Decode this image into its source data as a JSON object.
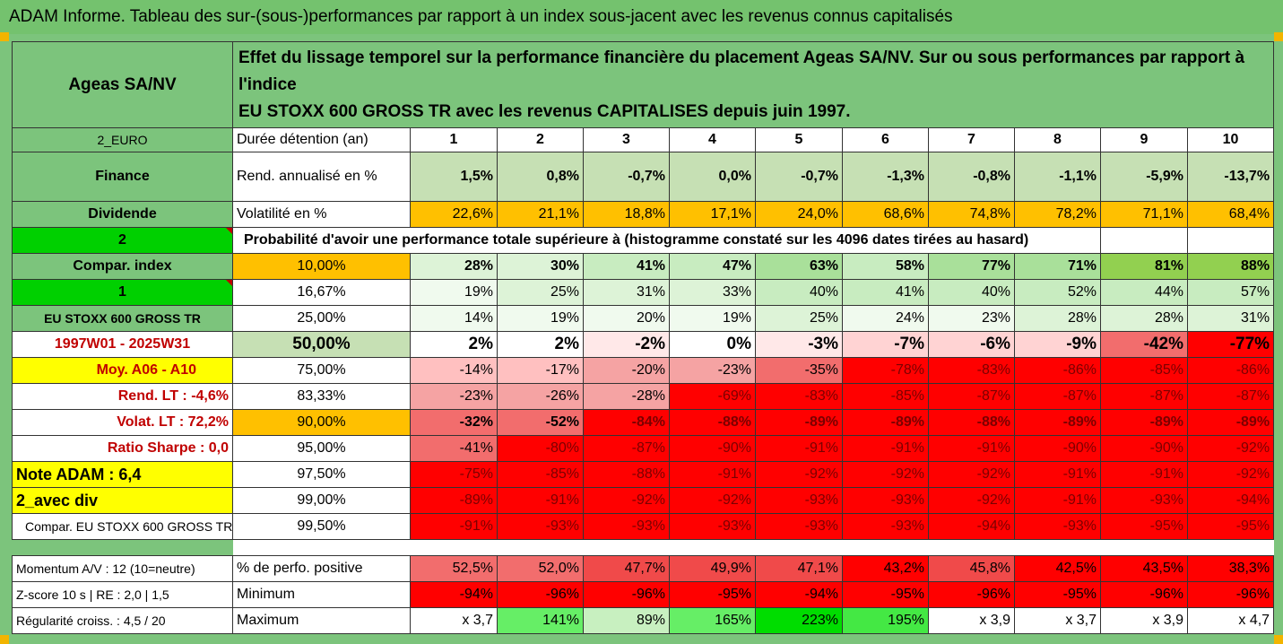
{
  "title": "ADAM Informe. Tableau des sur-(sous-)performances par rapport à un index sous-jacent avec les revenus connus capitalisés",
  "header": {
    "asset": "Ageas SA/NV",
    "description_line1": "Effet du lissage temporel sur la performance financière du placement Ageas SA/NV. Sur ou sous performances par rapport à l'indice",
    "description_line2": "EU STOXX 600 GROSS TR avec les revenus CAPITALISES depuis juin 1997."
  },
  "side_labels": {
    "currency": "2_EURO",
    "sector": "Finance",
    "dividend": "Dividende",
    "number_2": "2",
    "compar_index": "Compar. index",
    "number_1": "1",
    "index_name": "EU STOXX 600 GROSS TR",
    "period": "1997W01 - 2025W31",
    "moy": "Moy. A06 - A10",
    "rend_lt": "Rend. LT :   -4,6%",
    "volat_lt": "Volat. LT :   72,2%",
    "sharpe": "Ratio Sharpe :   0,0",
    "note": "Note ADAM : 6,4",
    "avec_div": "2_avec div",
    "compar_full": "Compar. EU STOXX 600 GROSS TR",
    "momentum": "Momentum A/V : 12 (10=neutre)",
    "zscore": "Z-score 10 s  |  RE : 2,0  |  1,5",
    "regularite": "Régularité croiss. : 4,5 / 20"
  },
  "row_labels": {
    "duree": "Durée détention (an)",
    "rend": "Rend. annualisé en %",
    "volat": "Volatilité en %",
    "proba": "Probabilité d'avoir une performance totale supérieure à (histogramme constaté sur les 4096 dates tirées au hasard)",
    "positive": "% de perfo. positive",
    "minimum": "Minimum",
    "maximum": "Maximum"
  },
  "years": [
    "1",
    "2",
    "3",
    "4",
    "5",
    "6",
    "7",
    "8",
    "9",
    "10"
  ],
  "rend_values": [
    "1,5%",
    "0,8%",
    "-0,7%",
    "0,0%",
    "-0,7%",
    "-1,3%",
    "-0,8%",
    "-1,1%",
    "-5,9%",
    "-13,7%"
  ],
  "volat_values": [
    "22,6%",
    "21,1%",
    "18,8%",
    "17,1%",
    "24,0%",
    "68,6%",
    "74,8%",
    "78,2%",
    "71,1%",
    "68,4%"
  ],
  "quantile_rows": [
    {
      "pct": "10,00%",
      "values": [
        "28%",
        "30%",
        "41%",
        "47%",
        "63%",
        "58%",
        "77%",
        "71%",
        "81%",
        "88%"
      ]
    },
    {
      "pct": "16,67%",
      "values": [
        "19%",
        "25%",
        "31%",
        "33%",
        "40%",
        "41%",
        "40%",
        "52%",
        "44%",
        "57%"
      ]
    },
    {
      "pct": "25,00%",
      "values": [
        "14%",
        "19%",
        "20%",
        "19%",
        "25%",
        "24%",
        "23%",
        "28%",
        "28%",
        "31%"
      ]
    },
    {
      "pct": "50,00%",
      "values": [
        "2%",
        "2%",
        "-2%",
        "0%",
        "-3%",
        "-7%",
        "-6%",
        "-9%",
        "-42%",
        "-77%"
      ]
    },
    {
      "pct": "75,00%",
      "values": [
        "-14%",
        "-17%",
        "-20%",
        "-23%",
        "-35%",
        "-78%",
        "-83%",
        "-86%",
        "-85%",
        "-86%"
      ]
    },
    {
      "pct": "83,33%",
      "values": [
        "-23%",
        "-26%",
        "-28%",
        "-69%",
        "-83%",
        "-85%",
        "-87%",
        "-87%",
        "-87%",
        "-87%"
      ]
    },
    {
      "pct": "90,00%",
      "values": [
        "-32%",
        "-52%",
        "-84%",
        "-88%",
        "-89%",
        "-89%",
        "-88%",
        "-89%",
        "-89%",
        "-89%"
      ]
    },
    {
      "pct": "95,00%",
      "values": [
        "-41%",
        "-80%",
        "-87%",
        "-90%",
        "-91%",
        "-91%",
        "-91%",
        "-90%",
        "-90%",
        "-92%"
      ]
    },
    {
      "pct": "97,50%",
      "values": [
        "-75%",
        "-85%",
        "-88%",
        "-91%",
        "-92%",
        "-92%",
        "-92%",
        "-91%",
        "-91%",
        "-92%"
      ]
    },
    {
      "pct": "99,00%",
      "values": [
        "-89%",
        "-91%",
        "-92%",
        "-92%",
        "-93%",
        "-93%",
        "-92%",
        "-91%",
        "-93%",
        "-94%"
      ]
    },
    {
      "pct": "99,50%",
      "values": [
        "-91%",
        "-93%",
        "-93%",
        "-93%",
        "-93%",
        "-93%",
        "-94%",
        "-93%",
        "-95%",
        "-95%"
      ]
    }
  ],
  "positive_values": [
    "52,5%",
    "52,0%",
    "47,7%",
    "49,9%",
    "47,1%",
    "43,2%",
    "45,8%",
    "42,5%",
    "43,5%",
    "38,3%"
  ],
  "minimum_values": [
    "-94%",
    "-96%",
    "-96%",
    "-95%",
    "-94%",
    "-95%",
    "-96%",
    "-95%",
    "-96%",
    "-96%"
  ],
  "maximum_values": [
    "x 3,7",
    "141%",
    "89%",
    "165%",
    "223%",
    "195%",
    "x 3,9",
    "x 3,7",
    "x 3,9",
    "x 4,7"
  ],
  "colors": {
    "header_green": "#7cc47c",
    "light_green": "#c6e0b4",
    "orange": "#ffc000",
    "bright_green": "#00d000",
    "yellow": "#ffff00",
    "red": "#ff0000",
    "red_text": "#c00000",
    "pale_pink": "#ffc7ce",
    "mid_pink": "#f4a7a7"
  }
}
